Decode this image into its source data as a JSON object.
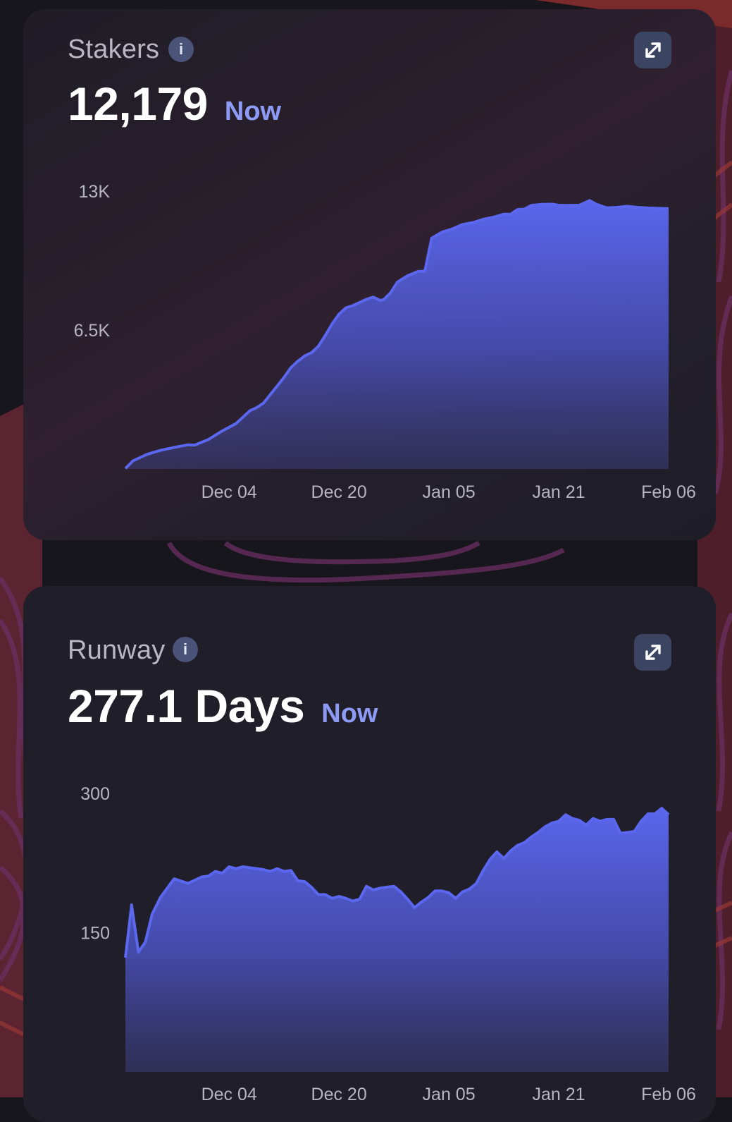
{
  "theme": {
    "accent": "#5b67ee",
    "now_color": "#8e9bf6"
  },
  "cards": [
    {
      "title": "Stakers",
      "value": "12,179",
      "now_label": "Now",
      "info_icon": "info-icon",
      "action_icon": "expand-icon",
      "chart_data": {
        "type": "area",
        "ylim": [
          0,
          13000
        ],
        "y_ticks": [
          "6.5K",
          "13K"
        ],
        "x_tick_labels": [
          "Dec 04",
          "Dec 20",
          "Jan 05",
          "Jan 21",
          "Feb 06"
        ],
        "x_range": [
          -15.1,
          64
        ],
        "series": [
          {
            "values": [
              [
                -15.1,
                20
              ],
              [
                -14,
                380
              ],
              [
                -12,
                680
              ],
              [
                -10,
                870
              ],
              [
                -8,
                1010
              ],
              [
                -6,
                1130
              ],
              [
                -5,
                1120
              ],
              [
                -3,
                1380
              ],
              [
                -1,
                1780
              ],
              [
                1,
                2120
              ],
              [
                2,
                2420
              ],
              [
                3,
                2720
              ],
              [
                4,
                2870
              ],
              [
                5,
                3080
              ],
              [
                6,
                3480
              ],
              [
                7,
                3880
              ],
              [
                8,
                4290
              ],
              [
                9,
                4740
              ],
              [
                10,
                5040
              ],
              [
                11,
                5290
              ],
              [
                12,
                5440
              ],
              [
                13,
                5740
              ],
              [
                14,
                6240
              ],
              [
                15,
                6790
              ],
              [
                16,
                7240
              ],
              [
                17,
                7540
              ],
              [
                18,
                7640
              ],
              [
                19,
                7790
              ],
              [
                20,
                7940
              ],
              [
                21,
                8040
              ],
              [
                22,
                7890
              ],
              [
                22.5,
                7920
              ],
              [
                23.5,
                8240
              ],
              [
                24.5,
                8740
              ],
              [
                26,
                9040
              ],
              [
                27.5,
                9240
              ],
              [
                28.5,
                9260
              ],
              [
                29.5,
                10800
              ],
              [
                31,
                11080
              ],
              [
                32.5,
                11230
              ],
              [
                34,
                11440
              ],
              [
                35.5,
                11530
              ],
              [
                37,
                11680
              ],
              [
                38.5,
                11780
              ],
              [
                40,
                11920
              ],
              [
                41,
                11920
              ],
              [
                42,
                12140
              ],
              [
                43,
                12160
              ],
              [
                44,
                12330
              ],
              [
                45.5,
                12380
              ],
              [
                47,
                12390
              ],
              [
                48,
                12340
              ],
              [
                49,
                12330
              ],
              [
                51,
                12340
              ],
              [
                52.5,
                12560
              ],
              [
                53.5,
                12380
              ],
              [
                55,
                12220
              ],
              [
                56.5,
                12240
              ],
              [
                58,
                12290
              ],
              [
                59.5,
                12240
              ],
              [
                61,
                12210
              ],
              [
                64,
                12179
              ]
            ]
          }
        ]
      }
    },
    {
      "title": "Runway",
      "value": "277.1 Days",
      "now_label": "Now",
      "info_icon": "info-icon",
      "action_icon": "expand-icon",
      "chart_data": {
        "type": "area",
        "ylim": [
          0,
          300
        ],
        "y_ticks": [
          "150",
          "300"
        ],
        "x_tick_labels": [
          "Dec 04",
          "Dec 20",
          "Jan 05",
          "Jan 21",
          "Feb 06"
        ],
        "x_range": [
          -15.1,
          64
        ],
        "series": [
          {
            "values": [
              [
                -15.1,
                123
              ],
              [
                -14.2,
                180
              ],
              [
                -13.2,
                129
              ],
              [
                -12.2,
                140
              ],
              [
                -11.2,
                170
              ],
              [
                -10,
                188
              ],
              [
                -8,
                208
              ],
              [
                -6,
                203
              ],
              [
                -4,
                210
              ],
              [
                -3,
                211
              ],
              [
                -2,
                216
              ],
              [
                -1,
                214
              ],
              [
                0,
                221
              ],
              [
                1,
                219
              ],
              [
                2,
                221
              ],
              [
                3,
                220
              ],
              [
                4,
                219
              ],
              [
                5,
                218
              ],
              [
                6,
                216
              ],
              [
                7,
                219
              ],
              [
                8,
                216
              ],
              [
                9,
                217
              ],
              [
                10,
                206
              ],
              [
                11,
                205
              ],
              [
                12,
                199
              ],
              [
                13,
                191
              ],
              [
                14,
                191
              ],
              [
                15,
                187
              ],
              [
                16,
                189
              ],
              [
                17,
                187
              ],
              [
                18,
                184
              ],
              [
                19,
                186
              ],
              [
                20,
                200
              ],
              [
                21,
                196
              ],
              [
                22,
                198
              ],
              [
                23,
                199
              ],
              [
                24,
                200
              ],
              [
                25,
                194
              ],
              [
                26,
                186
              ],
              [
                27,
                177
              ],
              [
                28,
                183
              ],
              [
                29,
                188
              ],
              [
                30,
                195
              ],
              [
                31,
                195
              ],
              [
                32,
                193
              ],
              [
                33,
                187
              ],
              [
                34,
                194
              ],
              [
                35,
                197
              ],
              [
                36,
                203
              ],
              [
                37,
                217
              ],
              [
                38,
                229
              ],
              [
                39,
                237
              ],
              [
                40,
                230
              ],
              [
                41,
                238
              ],
              [
                42,
                244
              ],
              [
                43,
                247
              ],
              [
                44,
                253
              ],
              [
                45,
                258
              ],
              [
                46,
                264
              ],
              [
                47,
                268
              ],
              [
                48,
                270
              ],
              [
                49,
                277
              ],
              [
                50,
                273
              ],
              [
                51,
                271
              ],
              [
                52,
                266
              ],
              [
                53,
                273
              ],
              [
                54,
                270
              ],
              [
                55,
                272
              ],
              [
                56,
                272
              ],
              [
                57,
                257
              ],
              [
                58,
                258
              ],
              [
                59,
                259
              ],
              [
                60,
                270
              ],
              [
                61,
                278
              ],
              [
                62,
                278
              ],
              [
                63,
                284
              ],
              [
                64,
                277.1
              ]
            ]
          }
        ]
      }
    }
  ]
}
